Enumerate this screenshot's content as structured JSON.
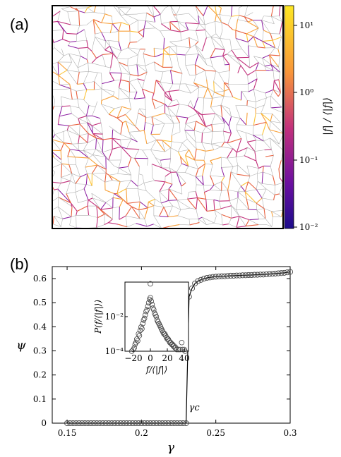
{
  "panels": {
    "a": {
      "label": "(a)"
    },
    "b": {
      "label": "(b)"
    }
  },
  "network_panel": {
    "colorbar": {
      "label": "|f| / ⟨|f|⟩",
      "tick_labels": [
        "10¹",
        "10⁰",
        "10⁻¹",
        "10⁻²"
      ],
      "colors": [
        "#fde724",
        "#f8953a",
        "#c2317c",
        "#6a0fa0",
        "#1c0c8a"
      ],
      "scale": "log"
    },
    "edge_colors": [
      "#b0b0b0",
      "#8a1aa0",
      "#c2317c",
      "#e8613f",
      "#f8a13a",
      "#fcc43a"
    ]
  },
  "chart_data": [
    {
      "type": "scatter",
      "title": "",
      "xlabel": "γ",
      "ylabel": "ψ",
      "xlim": [
        0.14,
        0.3
      ],
      "ylim": [
        0,
        0.65
      ],
      "xticks": [
        0.15,
        0.2,
        0.25,
        0.3
      ],
      "xtick_labels": [
        "0.15",
        "0.2",
        "0.25",
        "0.3"
      ],
      "yticks": [
        0,
        0.1,
        0.2,
        0.3,
        0.4,
        0.5,
        0.6
      ],
      "ytick_labels": [
        "0",
        "0.1",
        "0.2",
        "0.3",
        "0.4",
        "0.5",
        "0.6"
      ],
      "annotation": "γc",
      "annotation_x": 0.231,
      "series": [
        {
          "x": [
            0.15,
            0.152,
            0.154,
            0.156,
            0.158,
            0.16,
            0.162,
            0.164,
            0.166,
            0.168,
            0.17,
            0.172,
            0.174,
            0.176,
            0.178,
            0.18,
            0.182,
            0.184,
            0.186,
            0.188,
            0.19,
            0.192,
            0.194,
            0.196,
            0.198,
            0.2,
            0.202,
            0.204,
            0.206,
            0.208,
            0.21,
            0.212,
            0.214,
            0.216,
            0.218,
            0.22,
            0.222,
            0.224,
            0.226,
            0.228,
            0.23,
            0.232,
            0.234,
            0.236,
            0.238,
            0.24,
            0.242,
            0.244,
            0.246,
            0.248,
            0.25,
            0.252,
            0.254,
            0.256,
            0.258,
            0.26,
            0.262,
            0.264,
            0.266,
            0.268,
            0.27,
            0.272,
            0.274,
            0.276,
            0.278,
            0.28,
            0.282,
            0.284,
            0.286,
            0.288,
            0.29,
            0.292,
            0.294,
            0.296,
            0.298,
            0.3
          ],
          "y": [
            0,
            0,
            0,
            0,
            0,
            0,
            0,
            0,
            0,
            0,
            0,
            0,
            0,
            0,
            0,
            0,
            0,
            0,
            0,
            0,
            0,
            0,
            0,
            0,
            0,
            0,
            0,
            0,
            0,
            0,
            0,
            0,
            0,
            0,
            0,
            0,
            0,
            0,
            0,
            0,
            0,
            0.525,
            0.56,
            0.58,
            0.59,
            0.595,
            0.6,
            0.603,
            0.605,
            0.607,
            0.608,
            0.609,
            0.61,
            0.61,
            0.611,
            0.612,
            0.612,
            0.613,
            0.613,
            0.614,
            0.614,
            0.615,
            0.615,
            0.616,
            0.616,
            0.617,
            0.617,
            0.618,
            0.619,
            0.62,
            0.621,
            0.622,
            0.623,
            0.624,
            0.626,
            0.628
          ]
        }
      ]
    },
    {
      "type": "scatter",
      "title": "",
      "xlabel": "f/⟨|f|⟩",
      "ylabel": "P(f/⟨|f|⟩)",
      "xlim": [
        -30,
        45
      ],
      "ylim_log10": [
        -4,
        0
      ],
      "xticks": [
        -20,
        0,
        20,
        40
      ],
      "xtick_labels": [
        "−20",
        "0",
        "20",
        "40"
      ],
      "ytick_labels": [
        "10⁻⁴",
        "10⁻²"
      ],
      "series": [
        {
          "x": [
            -22,
            -20,
            -19,
            -18,
            -17,
            -16,
            -15,
            -14,
            -13,
            -12,
            -11,
            -10,
            -9,
            -8,
            -7,
            -6,
            -5,
            -4,
            -3,
            -2,
            -1,
            0,
            0,
            1,
            2,
            3,
            4,
            5,
            6,
            7,
            8,
            9,
            10,
            11,
            12,
            13,
            14,
            15,
            16,
            17,
            18,
            19,
            20,
            21,
            22,
            23,
            24,
            25,
            26,
            27,
            28,
            29,
            30,
            31,
            33,
            35,
            37,
            38,
            40,
            41
          ],
          "log10y": [
            -4.0,
            -3.9,
            -3.8,
            -3.6,
            -3.5,
            -3.3,
            -3.4,
            -3.0,
            -3.1,
            -2.8,
            -2.6,
            -2.7,
            -2.4,
            -2.2,
            -2.1,
            -1.9,
            -1.7,
            -1.6,
            -1.4,
            -1.2,
            -1.0,
            -0.1,
            -0.9,
            -1.1,
            -1.3,
            -1.5,
            -1.6,
            -1.8,
            -1.9,
            -2.0,
            -2.2,
            -2.3,
            -2.4,
            -2.5,
            -2.6,
            -2.7,
            -2.8,
            -2.9,
            -3.0,
            -3.0,
            -3.1,
            -3.2,
            -3.3,
            -3.3,
            -3.4,
            -3.5,
            -3.5,
            -3.6,
            -3.6,
            -3.7,
            -3.7,
            -3.8,
            -3.8,
            -3.9,
            -3.9,
            -3.9,
            -3.5,
            -3.9,
            -3.9,
            -4.0
          ]
        }
      ]
    }
  ]
}
